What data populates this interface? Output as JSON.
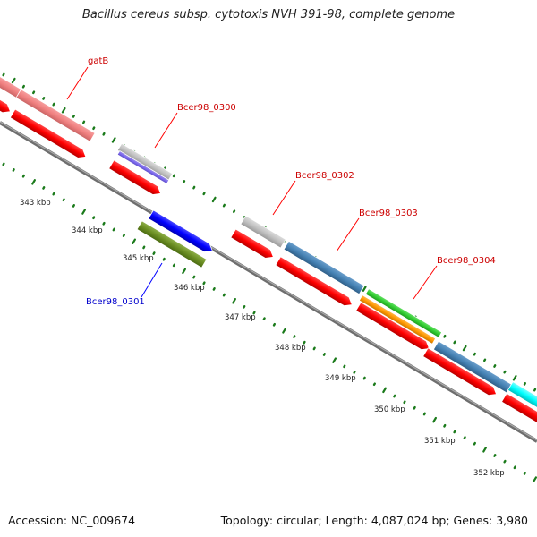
{
  "title": "Bacillus cereus subsp. cytotoxis NVH 391-98, complete genome",
  "footer": {
    "accession": "Accession: NC_009674",
    "stats": "Topology: circular; Length: 4,087,024 bp; Genes: 3,980"
  },
  "colors": {
    "backbone": "#808080",
    "tick": "#1a7a1a",
    "cds": "#ff0000",
    "forward_label": "#cc0000",
    "reverse_label": "#0000cc"
  },
  "kbp_labels": [
    "343 kbp",
    "344 kbp",
    "345 kbp",
    "346 kbp",
    "347 kbp",
    "348 kbp",
    "349 kbp",
    "350 kbp",
    "351 kbp",
    "352 kbp"
  ],
  "gene_labels": {
    "gatB": "gatB",
    "bcer98_0300": "Bcer98_0300",
    "bcer98_0301": "Bcer98_0301",
    "bcer98_0302": "Bcer98_0302",
    "bcer98_0303": "Bcer98_0303",
    "bcer98_0304": "Bcer98_0304"
  }
}
